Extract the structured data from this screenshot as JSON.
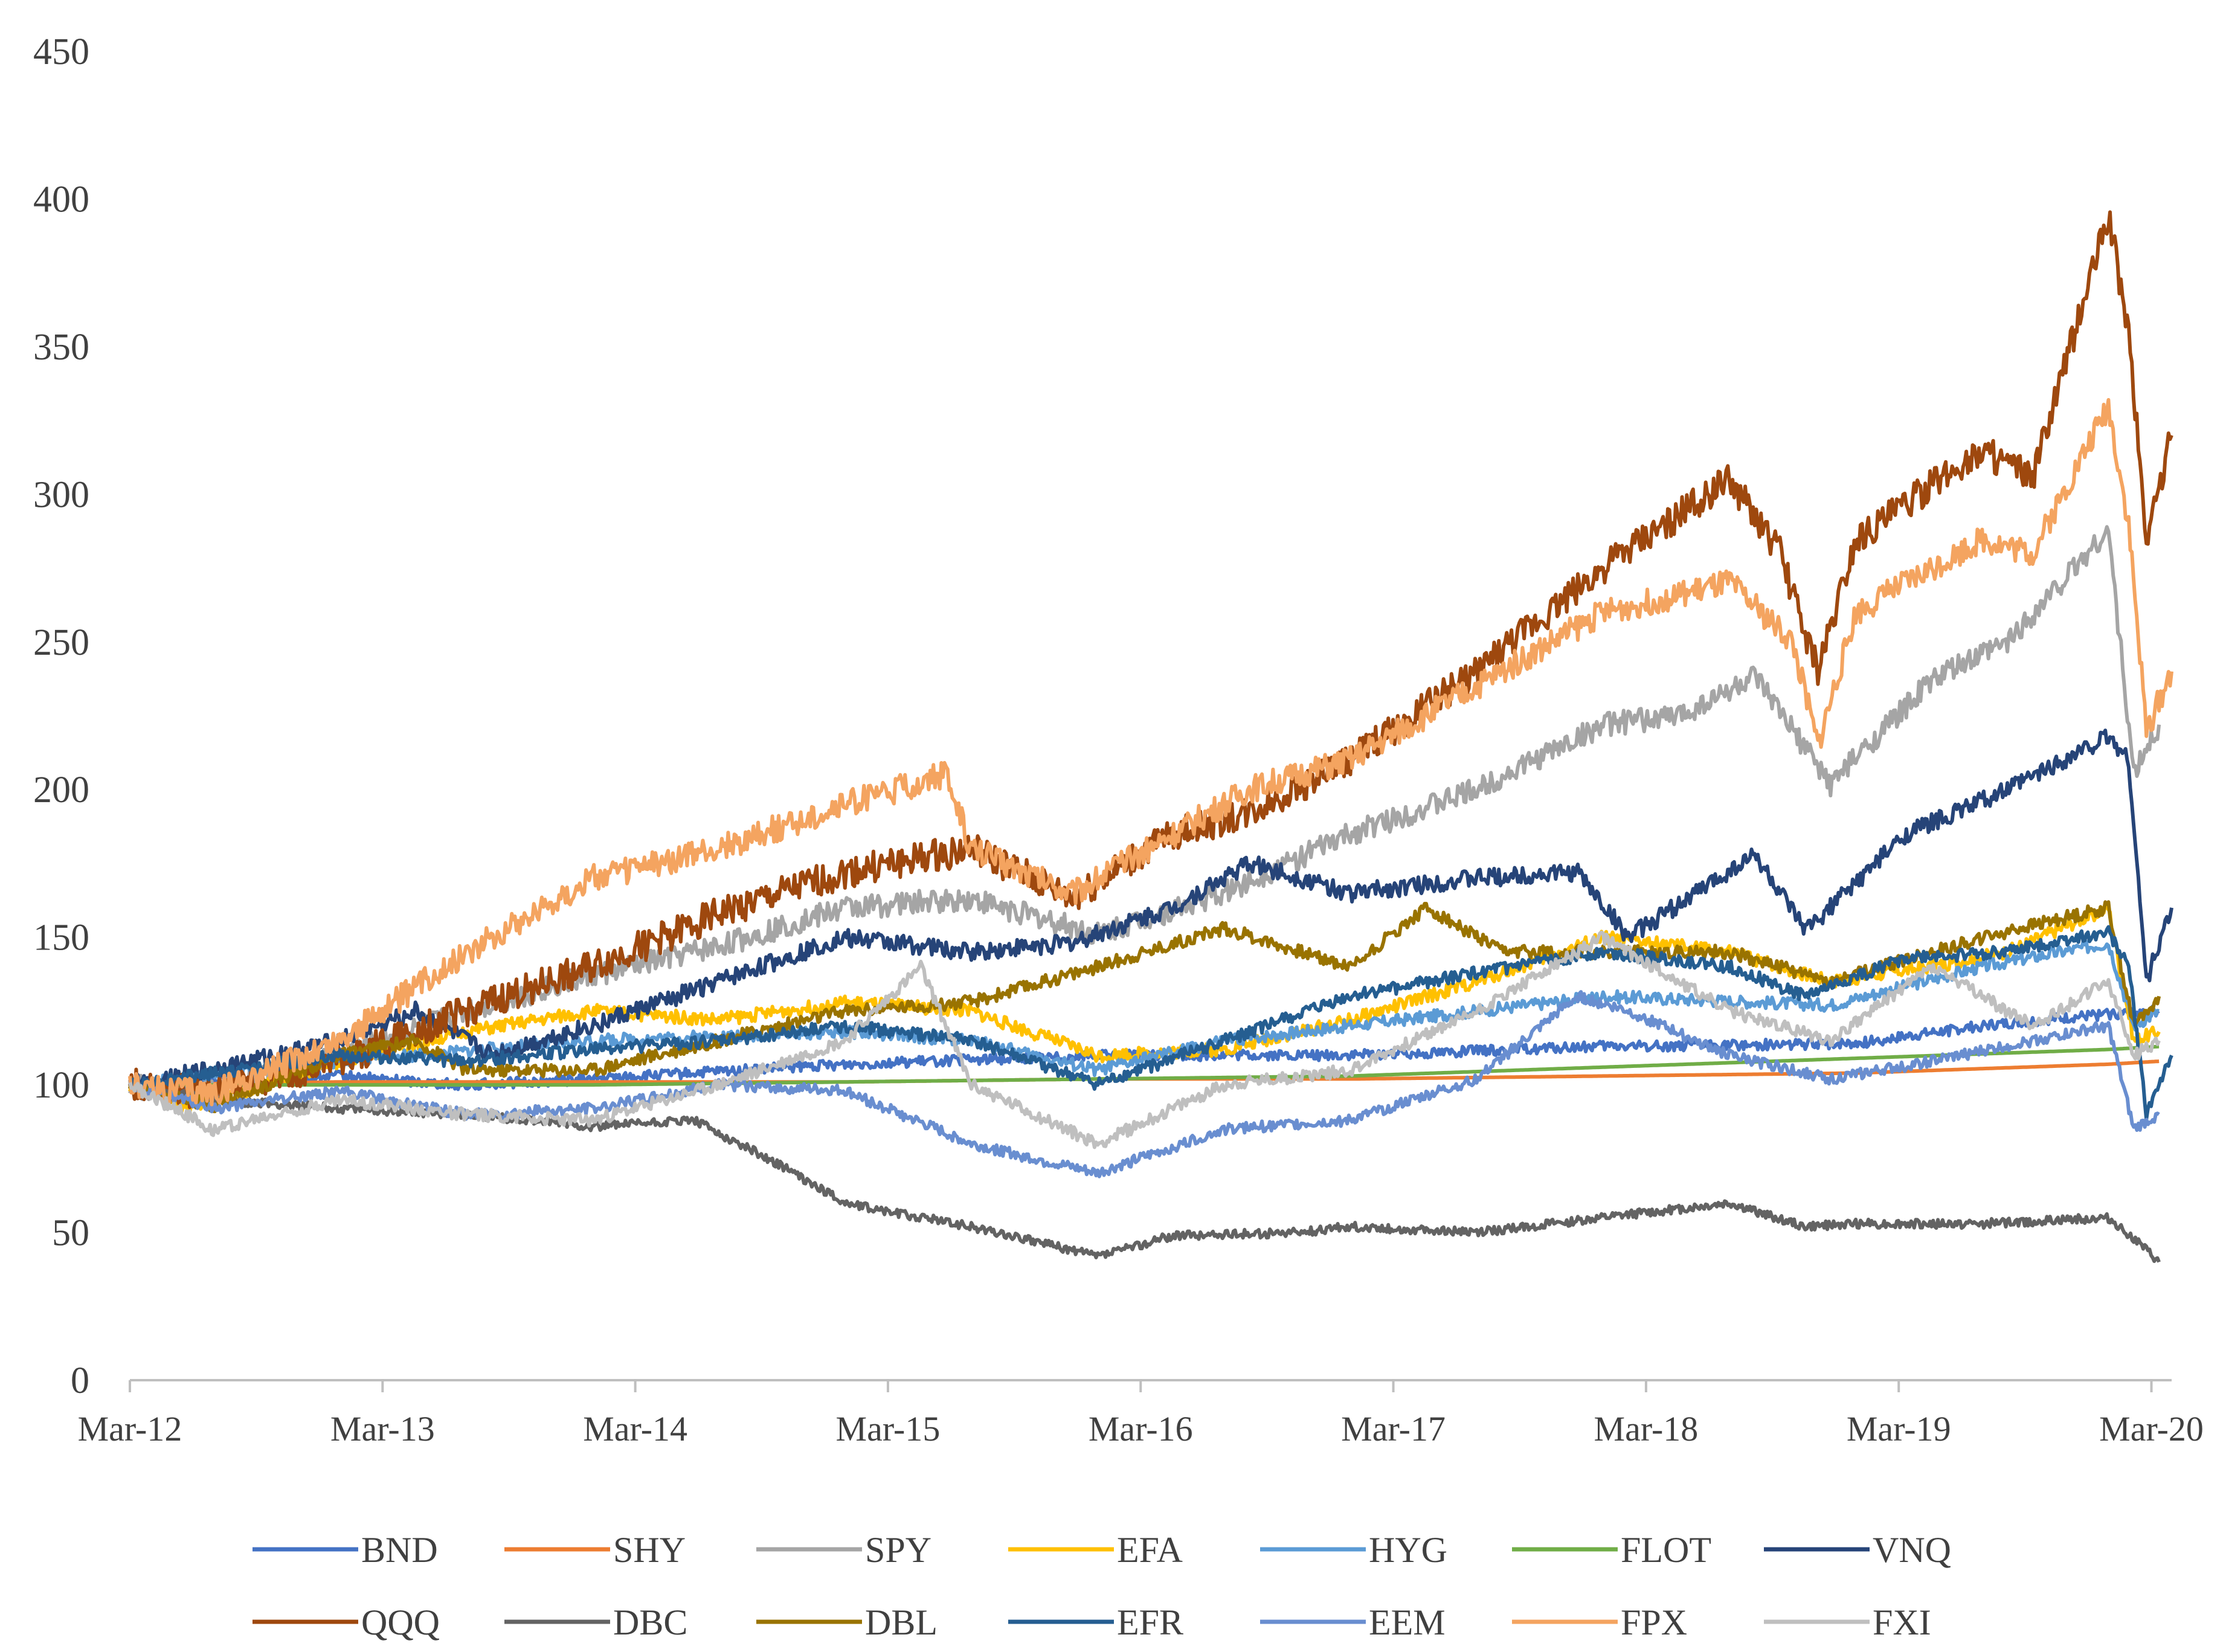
{
  "chart_data": {
    "type": "line",
    "title": "",
    "xlabel": "",
    "ylabel": "",
    "ylim": [
      0,
      450
    ],
    "yticks": [
      0,
      50,
      100,
      150,
      200,
      250,
      300,
      350,
      400,
      450
    ],
    "xlim": [
      2012.17,
      2020.25
    ],
    "xticks": [
      {
        "x": 2012.17,
        "label": "Mar-12"
      },
      {
        "x": 2013.17,
        "label": "Mar-13"
      },
      {
        "x": 2014.17,
        "label": "Mar-14"
      },
      {
        "x": 2015.17,
        "label": "Mar-15"
      },
      {
        "x": 2016.17,
        "label": "Mar-16"
      },
      {
        "x": 2017.17,
        "label": "Mar-17"
      },
      {
        "x": 2018.17,
        "label": "Mar-18"
      },
      {
        "x": 2019.17,
        "label": "Mar-19"
      },
      {
        "x": 2020.17,
        "label": "Mar-20"
      }
    ],
    "grid": false,
    "legend": "bottom",
    "series": [
      {
        "name": "BND",
        "color": "#4472C4",
        "x": [
          2012.17,
          2013.0,
          2013.5,
          2014.0,
          2015.0,
          2016.0,
          2017.0,
          2018.0,
          2019.0,
          2019.5,
          2020.0,
          2020.2
        ],
        "values": [
          100,
          103,
          100,
          102,
          107,
          110,
          110,
          113,
          114,
          120,
          124,
          125
        ]
      },
      {
        "name": "SHY",
        "color": "#ED7D31",
        "x": [
          2012.17,
          2013.0,
          2014.0,
          2015.0,
          2016.0,
          2017.0,
          2018.0,
          2019.0,
          2020.0,
          2020.2
        ],
        "values": [
          100,
          101,
          101,
          101,
          102,
          102,
          103,
          104,
          107,
          108
        ]
      },
      {
        "name": "SPY",
        "color": "#A5A5A5",
        "x": [
          2012.17,
          2012.4,
          2013.0,
          2013.5,
          2014.0,
          2014.5,
          2015.0,
          2015.5,
          2016.0,
          2016.5,
          2017.0,
          2017.5,
          2018.0,
          2018.3,
          2018.6,
          2018.9,
          2019.3,
          2019.6,
          2020.0,
          2020.1,
          2020.2
        ],
        "values": [
          100,
          96,
          110,
          125,
          137,
          147,
          160,
          163,
          151,
          165,
          185,
          200,
          222,
          225,
          238,
          202,
          237,
          250,
          288,
          205,
          222
        ]
      },
      {
        "name": "EFA",
        "color": "#FFC000",
        "x": [
          2012.17,
          2012.4,
          2013.0,
          2013.5,
          2014.0,
          2014.5,
          2015.0,
          2015.5,
          2016.0,
          2016.5,
          2017.0,
          2017.5,
          2018.0,
          2018.5,
          2018.9,
          2019.3,
          2019.6,
          2020.0,
          2020.1,
          2020.2
        ],
        "values": [
          100,
          92,
          108,
          118,
          125,
          122,
          128,
          125,
          110,
          112,
          122,
          135,
          150,
          145,
          135,
          140,
          145,
          160,
          115,
          118
        ]
      },
      {
        "name": "HYG",
        "color": "#5B9BD5",
        "x": [
          2012.17,
          2013.0,
          2014.0,
          2015.0,
          2015.5,
          2016.0,
          2016.5,
          2017.0,
          2018.0,
          2018.9,
          2019.5,
          2020.0,
          2020.1,
          2020.2
        ],
        "values": [
          100,
          108,
          115,
          118,
          115,
          105,
          115,
          120,
          130,
          127,
          140,
          148,
          120,
          125
        ]
      },
      {
        "name": "FLOT",
        "color": "#70AD47",
        "x": [
          2012.17,
          2013.0,
          2014.0,
          2015.0,
          2016.0,
          2017.0,
          2018.0,
          2019.0,
          2020.0,
          2020.2
        ],
        "values": [
          100,
          100,
          100,
          101,
          102,
          103,
          106,
          109,
          112,
          113
        ]
      },
      {
        "name": "VNQ",
        "color": "#264478",
        "x": [
          2012.17,
          2012.6,
          2013.0,
          2013.3,
          2013.6,
          2014.0,
          2014.5,
          2015.0,
          2015.5,
          2015.9,
          2016.3,
          2016.6,
          2017.0,
          2017.5,
          2017.9,
          2018.1,
          2018.6,
          2018.8,
          2019.2,
          2019.6,
          2020.0,
          2020.08,
          2020.15,
          2020.25
        ],
        "values": [
          100,
          107,
          115,
          125,
          110,
          120,
          135,
          150,
          145,
          148,
          160,
          175,
          165,
          170,
          172,
          150,
          178,
          152,
          185,
          200,
          218,
          210,
          135,
          160
        ]
      },
      {
        "name": "QQQ",
        "color": "#9E480E",
        "x": [
          2012.17,
          2012.5,
          2013.0,
          2013.5,
          2014.0,
          2014.5,
          2015.0,
          2015.5,
          2015.9,
          2016.3,
          2016.6,
          2017.0,
          2017.5,
          2018.0,
          2018.5,
          2018.7,
          2018.85,
          2019.0,
          2019.5,
          2019.7,
          2020.0,
          2020.08,
          2020.15,
          2020.25
        ],
        "values": [
          100,
          97,
          108,
          125,
          140,
          158,
          172,
          180,
          163,
          185,
          192,
          210,
          240,
          275,
          305,
          280,
          240,
          285,
          315,
          305,
          395,
          355,
          285,
          320
        ]
      },
      {
        "name": "DBC",
        "color": "#636363",
        "x": [
          2012.17,
          2012.5,
          2013.0,
          2013.5,
          2014.0,
          2014.4,
          2014.7,
          2015.0,
          2015.5,
          2016.0,
          2016.3,
          2016.8,
          2017.0,
          2017.5,
          2018.0,
          2018.5,
          2018.8,
          2019.0,
          2019.5,
          2020.0,
          2020.1,
          2020.2
        ],
        "values": [
          100,
          95,
          92,
          90,
          86,
          88,
          75,
          60,
          52,
          42,
          49,
          50,
          52,
          50,
          55,
          60,
          52,
          53,
          53,
          55,
          48,
          40
        ]
      },
      {
        "name": "DBL",
        "color": "#997300",
        "x": [
          2012.17,
          2012.5,
          2013.0,
          2013.3,
          2013.5,
          2014.0,
          2014.5,
          2015.0,
          2015.5,
          2016.0,
          2016.5,
          2017.0,
          2017.3,
          2017.6,
          2018.0,
          2018.5,
          2018.9,
          2019.3,
          2019.6,
          2020.0,
          2020.1,
          2020.2
        ],
        "values": [
          100,
          93,
          110,
          115,
          105,
          105,
          115,
          125,
          128,
          140,
          153,
          140,
          160,
          145,
          145,
          145,
          135,
          145,
          152,
          160,
          120,
          130
        ]
      },
      {
        "name": "EFR",
        "color": "#255E91",
        "x": [
          2012.17,
          2013.0,
          2013.5,
          2014.0,
          2014.5,
          2015.0,
          2015.5,
          2016.0,
          2016.5,
          2017.0,
          2017.5,
          2018.0,
          2018.5,
          2018.8,
          2019.2,
          2019.6,
          2020.0,
          2020.08,
          2020.15,
          2020.25
        ],
        "values": [
          100,
          110,
          108,
          112,
          115,
          120,
          115,
          100,
          115,
          130,
          138,
          145,
          140,
          130,
          143,
          145,
          152,
          140,
          90,
          110
        ]
      },
      {
        "name": "EEM",
        "color": "#698ED0",
        "x": [
          2012.17,
          2012.5,
          2013.0,
          2013.5,
          2014.0,
          2014.5,
          2015.0,
          2015.5,
          2016.0,
          2016.5,
          2017.0,
          2017.5,
          2017.9,
          2018.1,
          2018.5,
          2018.9,
          2019.3,
          2019.7,
          2020.0,
          2020.1,
          2020.2
        ],
        "values": [
          100,
          92,
          98,
          90,
          92,
          100,
          98,
          80,
          70,
          85,
          88,
          102,
          130,
          125,
          110,
          102,
          108,
          115,
          120,
          85,
          90
        ]
      },
      {
        "name": "FPX",
        "color": "#F4A460",
        "x": [
          2012.17,
          2012.5,
          2013.0,
          2013.5,
          2014.0,
          2014.5,
          2015.0,
          2015.4,
          2015.5,
          2015.9,
          2016.3,
          2016.6,
          2017.0,
          2017.5,
          2018.0,
          2018.5,
          2018.75,
          2018.85,
          2019.0,
          2019.5,
          2019.7,
          2020.0,
          2020.08,
          2020.15,
          2020.25
        ],
        "values": [
          100,
          97,
          115,
          145,
          170,
          180,
          195,
          205,
          180,
          165,
          185,
          200,
          210,
          235,
          260,
          270,
          250,
          215,
          260,
          285,
          280,
          330,
          290,
          220,
          240
        ]
      },
      {
        "name": "FXI",
        "color": "#BFBFBF",
        "x": [
          2012.17,
          2012.5,
          2013.0,
          2013.5,
          2014.0,
          2014.5,
          2015.0,
          2015.3,
          2015.5,
          2016.0,
          2016.5,
          2017.0,
          2017.5,
          2018.0,
          2018.5,
          2018.9,
          2019.3,
          2019.7,
          2020.0,
          2020.1,
          2020.2
        ],
        "values": [
          100,
          85,
          95,
          90,
          88,
          100,
          115,
          140,
          100,
          80,
          100,
          105,
          125,
          150,
          125,
          115,
          140,
          120,
          135,
          110,
          115
        ]
      }
    ]
  }
}
